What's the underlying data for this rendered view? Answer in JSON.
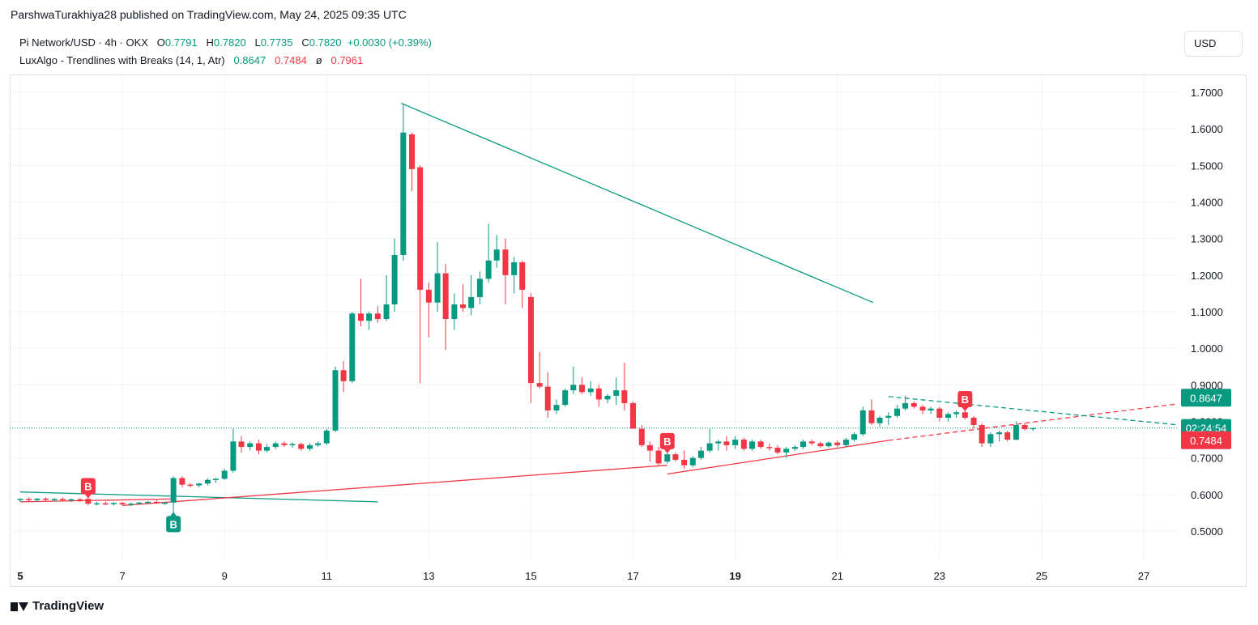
{
  "header": {
    "publisher_line": "ParshwaTurakhiya28 published on TradingView.com, May 24, 2025 09:35 UTC"
  },
  "legend": {
    "symbol_line": {
      "symbol": "Pi Network/USD · 4h · OKX",
      "o_label": "O",
      "o_value": "0.7791",
      "h_label": "H",
      "h_value": "0.7820",
      "l_label": "L",
      "l_value": "0.7735",
      "c_label": "C",
      "c_value": "0.7820",
      "change": "+0.0030 (+0.39%)"
    },
    "indicator_line": {
      "name": "LuxAlgo - Trendlines with Breaks (14, 1, Atr)",
      "v1": "0.8647",
      "v2": "0.7484",
      "sep": "ø",
      "v3": "0.7961"
    }
  },
  "currency_button": "USD",
  "footer": {
    "brand": "TradingView"
  },
  "colors": {
    "up": "#089981",
    "down": "#f23645",
    "grid": "#f0f3fa",
    "axis_text": "#131722"
  },
  "chart_data": {
    "type": "candlestick",
    "timeframe": "4h",
    "ylim": [
      0.43,
      1.79
    ],
    "xlim": [
      5,
      28.8
    ],
    "y_ticks": [
      "0.5000",
      "0.6000",
      "0.7000",
      "0.8000",
      "0.9000",
      "1.0000",
      "1.1000",
      "1.2000",
      "1.3000",
      "1.4000",
      "1.5000",
      "1.6000",
      "1.7000"
    ],
    "x_ticks": [
      {
        "v": 5,
        "label": "5"
      },
      {
        "v": 7,
        "label": "7"
      },
      {
        "v": 9,
        "label": "9"
      },
      {
        "v": 11,
        "label": "11"
      },
      {
        "v": 13,
        "label": "13"
      },
      {
        "v": 15,
        "label": "15"
      },
      {
        "v": 17,
        "label": "17"
      },
      {
        "v": 19,
        "label": "19"
      },
      {
        "v": 21,
        "label": "21"
      },
      {
        "v": 23,
        "label": "23"
      },
      {
        "v": 25,
        "label": "25"
      },
      {
        "v": 27,
        "label": "27"
      }
    ],
    "grid": true,
    "candles": [
      {
        "t": 5.0,
        "o": 0.585,
        "h": 0.59,
        "l": 0.58,
        "c": 0.588
      },
      {
        "t": 5.17,
        "o": 0.588,
        "h": 0.592,
        "l": 0.582,
        "c": 0.585
      },
      {
        "t": 5.33,
        "o": 0.585,
        "h": 0.59,
        "l": 0.58,
        "c": 0.589
      },
      {
        "t": 5.5,
        "o": 0.589,
        "h": 0.592,
        "l": 0.583,
        "c": 0.586
      },
      {
        "t": 5.67,
        "o": 0.586,
        "h": 0.59,
        "l": 0.581,
        "c": 0.588
      },
      {
        "t": 5.83,
        "o": 0.588,
        "h": 0.592,
        "l": 0.582,
        "c": 0.585
      },
      {
        "t": 6.0,
        "o": 0.585,
        "h": 0.589,
        "l": 0.58,
        "c": 0.587
      },
      {
        "t": 6.17,
        "o": 0.587,
        "h": 0.59,
        "l": 0.579,
        "c": 0.582
      },
      {
        "t": 6.33,
        "o": 0.588,
        "h": 0.592,
        "l": 0.57,
        "c": 0.575
      },
      {
        "t": 6.5,
        "o": 0.575,
        "h": 0.58,
        "l": 0.57,
        "c": 0.576
      },
      {
        "t": 6.67,
        "o": 0.576,
        "h": 0.58,
        "l": 0.571,
        "c": 0.574
      },
      {
        "t": 6.83,
        "o": 0.574,
        "h": 0.579,
        "l": 0.57,
        "c": 0.577
      },
      {
        "t": 7.0,
        "o": 0.577,
        "h": 0.58,
        "l": 0.57,
        "c": 0.573
      },
      {
        "t": 7.17,
        "o": 0.573,
        "h": 0.578,
        "l": 0.568,
        "c": 0.575
      },
      {
        "t": 7.33,
        "o": 0.575,
        "h": 0.58,
        "l": 0.572,
        "c": 0.578
      },
      {
        "t": 7.5,
        "o": 0.578,
        "h": 0.582,
        "l": 0.575,
        "c": 0.58
      },
      {
        "t": 7.67,
        "o": 0.58,
        "h": 0.585,
        "l": 0.574,
        "c": 0.577
      },
      {
        "t": 7.83,
        "o": 0.577,
        "h": 0.58,
        "l": 0.572,
        "c": 0.578
      },
      {
        "t": 8.0,
        "o": 0.578,
        "h": 0.65,
        "l": 0.55,
        "c": 0.645
      },
      {
        "t": 8.17,
        "o": 0.645,
        "h": 0.65,
        "l": 0.62,
        "c": 0.627
      },
      {
        "t": 8.33,
        "o": 0.627,
        "h": 0.632,
        "l": 0.62,
        "c": 0.625
      },
      {
        "t": 8.5,
        "o": 0.625,
        "h": 0.632,
        "l": 0.62,
        "c": 0.63
      },
      {
        "t": 8.67,
        "o": 0.63,
        "h": 0.645,
        "l": 0.625,
        "c": 0.64
      },
      {
        "t": 8.83,
        "o": 0.64,
        "h": 0.645,
        "l": 0.632,
        "c": 0.643
      },
      {
        "t": 9.0,
        "o": 0.643,
        "h": 0.67,
        "l": 0.64,
        "c": 0.665
      },
      {
        "t": 9.17,
        "o": 0.665,
        "h": 0.78,
        "l": 0.66,
        "c": 0.745
      },
      {
        "t": 9.33,
        "o": 0.745,
        "h": 0.76,
        "l": 0.715,
        "c": 0.73
      },
      {
        "t": 9.5,
        "o": 0.73,
        "h": 0.745,
        "l": 0.72,
        "c": 0.74
      },
      {
        "t": 9.67,
        "o": 0.74,
        "h": 0.75,
        "l": 0.71,
        "c": 0.72
      },
      {
        "t": 9.83,
        "o": 0.72,
        "h": 0.738,
        "l": 0.715,
        "c": 0.73
      },
      {
        "t": 10.0,
        "o": 0.73,
        "h": 0.745,
        "l": 0.725,
        "c": 0.74
      },
      {
        "t": 10.17,
        "o": 0.74,
        "h": 0.745,
        "l": 0.73,
        "c": 0.735
      },
      {
        "t": 10.33,
        "o": 0.735,
        "h": 0.742,
        "l": 0.728,
        "c": 0.738
      },
      {
        "t": 10.5,
        "o": 0.738,
        "h": 0.742,
        "l": 0.72,
        "c": 0.725
      },
      {
        "t": 10.67,
        "o": 0.725,
        "h": 0.74,
        "l": 0.72,
        "c": 0.735
      },
      {
        "t": 10.83,
        "o": 0.735,
        "h": 0.745,
        "l": 0.73,
        "c": 0.74
      },
      {
        "t": 11.0,
        "o": 0.74,
        "h": 0.78,
        "l": 0.735,
        "c": 0.775
      },
      {
        "t": 11.17,
        "o": 0.775,
        "h": 0.95,
        "l": 0.77,
        "c": 0.94
      },
      {
        "t": 11.33,
        "o": 0.94,
        "h": 0.965,
        "l": 0.88,
        "c": 0.91
      },
      {
        "t": 11.5,
        "o": 0.91,
        "h": 1.1,
        "l": 0.905,
        "c": 1.095
      },
      {
        "t": 11.67,
        "o": 1.095,
        "h": 1.19,
        "l": 1.06,
        "c": 1.075
      },
      {
        "t": 11.83,
        "o": 1.075,
        "h": 1.1,
        "l": 1.05,
        "c": 1.095
      },
      {
        "t": 12.0,
        "o": 1.095,
        "h": 1.115,
        "l": 1.07,
        "c": 1.08
      },
      {
        "t": 12.17,
        "o": 1.08,
        "h": 1.2,
        "l": 1.075,
        "c": 1.12
      },
      {
        "t": 12.33,
        "o": 1.12,
        "h": 1.3,
        "l": 1.1,
        "c": 1.255
      },
      {
        "t": 12.5,
        "o": 1.255,
        "h": 1.67,
        "l": 1.24,
        "c": 1.59
      },
      {
        "t": 12.67,
        "o": 1.585,
        "h": 1.59,
        "l": 1.43,
        "c": 1.49
      },
      {
        "t": 12.83,
        "o": 1.495,
        "h": 1.5,
        "l": 0.905,
        "c": 1.16
      },
      {
        "t": 13.0,
        "o": 1.16,
        "h": 1.18,
        "l": 1.03,
        "c": 1.125
      },
      {
        "t": 13.17,
        "o": 1.125,
        "h": 1.29,
        "l": 1.1,
        "c": 1.205
      },
      {
        "t": 13.33,
        "o": 1.205,
        "h": 1.23,
        "l": 0.995,
        "c": 1.08
      },
      {
        "t": 13.5,
        "o": 1.08,
        "h": 1.15,
        "l": 1.05,
        "c": 1.12
      },
      {
        "t": 13.67,
        "o": 1.12,
        "h": 1.175,
        "l": 1.1,
        "c": 1.11
      },
      {
        "t": 13.83,
        "o": 1.11,
        "h": 1.2,
        "l": 1.09,
        "c": 1.14
      },
      {
        "t": 14.0,
        "o": 1.14,
        "h": 1.21,
        "l": 1.12,
        "c": 1.19
      },
      {
        "t": 14.17,
        "o": 1.19,
        "h": 1.34,
        "l": 1.18,
        "c": 1.24
      },
      {
        "t": 14.33,
        "o": 1.24,
        "h": 1.31,
        "l": 1.22,
        "c": 1.27
      },
      {
        "t": 14.5,
        "o": 1.27,
        "h": 1.3,
        "l": 1.12,
        "c": 1.2
      },
      {
        "t": 14.67,
        "o": 1.2,
        "h": 1.25,
        "l": 1.15,
        "c": 1.235
      },
      {
        "t": 14.83,
        "o": 1.235,
        "h": 1.24,
        "l": 1.11,
        "c": 1.16
      },
      {
        "t": 15.0,
        "o": 1.14,
        "h": 1.15,
        "l": 0.85,
        "c": 0.905
      },
      {
        "t": 15.17,
        "o": 0.905,
        "h": 0.99,
        "l": 0.89,
        "c": 0.895
      },
      {
        "t": 15.33,
        "o": 0.895,
        "h": 0.935,
        "l": 0.81,
        "c": 0.83
      },
      {
        "t": 15.5,
        "o": 0.83,
        "h": 0.86,
        "l": 0.82,
        "c": 0.845
      },
      {
        "t": 15.67,
        "o": 0.845,
        "h": 0.89,
        "l": 0.84,
        "c": 0.885
      },
      {
        "t": 15.83,
        "o": 0.885,
        "h": 0.95,
        "l": 0.875,
        "c": 0.9
      },
      {
        "t": 16.0,
        "o": 0.9,
        "h": 0.92,
        "l": 0.875,
        "c": 0.88
      },
      {
        "t": 16.17,
        "o": 0.88,
        "h": 0.91,
        "l": 0.87,
        "c": 0.89
      },
      {
        "t": 16.33,
        "o": 0.89,
        "h": 0.9,
        "l": 0.84,
        "c": 0.86
      },
      {
        "t": 16.5,
        "o": 0.86,
        "h": 0.875,
        "l": 0.85,
        "c": 0.87
      },
      {
        "t": 16.67,
        "o": 0.87,
        "h": 0.92,
        "l": 0.845,
        "c": 0.885
      },
      {
        "t": 16.83,
        "o": 0.885,
        "h": 0.96,
        "l": 0.83,
        "c": 0.85
      },
      {
        "t": 17.0,
        "o": 0.85,
        "h": 0.855,
        "l": 0.78,
        "c": 0.78
      },
      {
        "t": 17.17,
        "o": 0.78,
        "h": 0.79,
        "l": 0.73,
        "c": 0.735
      },
      {
        "t": 17.33,
        "o": 0.735,
        "h": 0.745,
        "l": 0.69,
        "c": 0.72
      },
      {
        "t": 17.5,
        "o": 0.72,
        "h": 0.73,
        "l": 0.68,
        "c": 0.685
      },
      {
        "t": 17.67,
        "o": 0.69,
        "h": 0.715,
        "l": 0.685,
        "c": 0.71
      },
      {
        "t": 17.83,
        "o": 0.71,
        "h": 0.715,
        "l": 0.69,
        "c": 0.695
      },
      {
        "t": 18.0,
        "o": 0.695,
        "h": 0.72,
        "l": 0.67,
        "c": 0.68
      },
      {
        "t": 18.17,
        "o": 0.68,
        "h": 0.705,
        "l": 0.675,
        "c": 0.7
      },
      {
        "t": 18.33,
        "o": 0.7,
        "h": 0.73,
        "l": 0.695,
        "c": 0.72
      },
      {
        "t": 18.5,
        "o": 0.72,
        "h": 0.78,
        "l": 0.715,
        "c": 0.74
      },
      {
        "t": 18.67,
        "o": 0.74,
        "h": 0.75,
        "l": 0.72,
        "c": 0.745
      },
      {
        "t": 18.83,
        "o": 0.745,
        "h": 0.76,
        "l": 0.72,
        "c": 0.735
      },
      {
        "t": 19.0,
        "o": 0.735,
        "h": 0.76,
        "l": 0.725,
        "c": 0.75
      },
      {
        "t": 19.17,
        "o": 0.75,
        "h": 0.755,
        "l": 0.72,
        "c": 0.725
      },
      {
        "t": 19.33,
        "o": 0.725,
        "h": 0.75,
        "l": 0.72,
        "c": 0.745
      },
      {
        "t": 19.5,
        "o": 0.745,
        "h": 0.75,
        "l": 0.725,
        "c": 0.73
      },
      {
        "t": 19.67,
        "o": 0.73,
        "h": 0.74,
        "l": 0.72,
        "c": 0.728
      },
      {
        "t": 19.83,
        "o": 0.728,
        "h": 0.735,
        "l": 0.71,
        "c": 0.715
      },
      {
        "t": 20.0,
        "o": 0.715,
        "h": 0.73,
        "l": 0.7,
        "c": 0.725
      },
      {
        "t": 20.17,
        "o": 0.725,
        "h": 0.735,
        "l": 0.72,
        "c": 0.73
      },
      {
        "t": 20.33,
        "o": 0.73,
        "h": 0.75,
        "l": 0.725,
        "c": 0.745
      },
      {
        "t": 20.5,
        "o": 0.745,
        "h": 0.75,
        "l": 0.735,
        "c": 0.74
      },
      {
        "t": 20.67,
        "o": 0.74,
        "h": 0.745,
        "l": 0.728,
        "c": 0.732
      },
      {
        "t": 20.83,
        "o": 0.732,
        "h": 0.745,
        "l": 0.728,
        "c": 0.742
      },
      {
        "t": 21.0,
        "o": 0.742,
        "h": 0.748,
        "l": 0.73,
        "c": 0.735
      },
      {
        "t": 21.17,
        "o": 0.735,
        "h": 0.755,
        "l": 0.73,
        "c": 0.75
      },
      {
        "t": 21.33,
        "o": 0.75,
        "h": 0.77,
        "l": 0.745,
        "c": 0.765
      },
      {
        "t": 21.5,
        "o": 0.765,
        "h": 0.84,
        "l": 0.76,
        "c": 0.83
      },
      {
        "t": 21.67,
        "o": 0.83,
        "h": 0.86,
        "l": 0.79,
        "c": 0.795
      },
      {
        "t": 21.83,
        "o": 0.795,
        "h": 0.815,
        "l": 0.785,
        "c": 0.81
      },
      {
        "t": 22.0,
        "o": 0.81,
        "h": 0.825,
        "l": 0.79,
        "c": 0.815
      },
      {
        "t": 22.17,
        "o": 0.815,
        "h": 0.845,
        "l": 0.81,
        "c": 0.835
      },
      {
        "t": 22.33,
        "o": 0.835,
        "h": 0.87,
        "l": 0.83,
        "c": 0.85
      },
      {
        "t": 22.5,
        "o": 0.85,
        "h": 0.855,
        "l": 0.835,
        "c": 0.84
      },
      {
        "t": 22.67,
        "o": 0.84,
        "h": 0.845,
        "l": 0.82,
        "c": 0.83
      },
      {
        "t": 22.83,
        "o": 0.83,
        "h": 0.84,
        "l": 0.82,
        "c": 0.835
      },
      {
        "t": 23.0,
        "o": 0.835,
        "h": 0.84,
        "l": 0.8,
        "c": 0.81
      },
      {
        "t": 23.17,
        "o": 0.81,
        "h": 0.825,
        "l": 0.8,
        "c": 0.82
      },
      {
        "t": 23.33,
        "o": 0.82,
        "h": 0.83,
        "l": 0.81,
        "c": 0.825
      },
      {
        "t": 23.5,
        "o": 0.825,
        "h": 0.83,
        "l": 0.805,
        "c": 0.81
      },
      {
        "t": 23.67,
        "o": 0.81,
        "h": 0.815,
        "l": 0.78,
        "c": 0.79
      },
      {
        "t": 23.83,
        "o": 0.79,
        "h": 0.795,
        "l": 0.73,
        "c": 0.74
      },
      {
        "t": 24.0,
        "o": 0.74,
        "h": 0.77,
        "l": 0.73,
        "c": 0.765
      },
      {
        "t": 24.17,
        "o": 0.765,
        "h": 0.775,
        "l": 0.745,
        "c": 0.77
      },
      {
        "t": 24.33,
        "o": 0.77,
        "h": 0.775,
        "l": 0.745,
        "c": 0.75
      },
      {
        "t": 24.5,
        "o": 0.75,
        "h": 0.8,
        "l": 0.748,
        "c": 0.79
      },
      {
        "t": 24.67,
        "o": 0.79,
        "h": 0.795,
        "l": 0.775,
        "c": 0.779
      },
      {
        "t": 24.83,
        "o": 0.779,
        "h": 0.782,
        "l": 0.7735,
        "c": 0.782
      }
    ],
    "trendlines": [
      {
        "color": "#089981",
        "style": "solid",
        "from": [
          12.46,
          1.67
        ],
        "to": [
          21.7,
          1.125
        ]
      },
      {
        "color": "#089981",
        "style": "solid",
        "from": [
          5.0,
          0.607
        ],
        "to": [
          12.0,
          0.58
        ]
      },
      {
        "color": "#f23645",
        "style": "solid",
        "from": [
          5.0,
          0.58
        ],
        "to": [
          8.0,
          0.588
        ]
      },
      {
        "color": "#f23645",
        "style": "solid",
        "from": [
          7.0,
          0.57
        ],
        "to": [
          17.67,
          0.68
        ]
      },
      {
        "color": "#f23645",
        "style": "solid",
        "from": [
          17.67,
          0.656
        ],
        "to": [
          22.0,
          0.748
        ]
      },
      {
        "color": "#f23645",
        "style": "dashed",
        "from": [
          22.0,
          0.748
        ],
        "to": [
          28.8,
          0.868
        ]
      },
      {
        "color": "#089981",
        "style": "dashed",
        "from": [
          22.0,
          0.868
        ],
        "to": [
          28.8,
          0.775
        ]
      }
    ],
    "last_price_line": {
      "value": 0.782
    },
    "break_labels": [
      {
        "text": "B",
        "t": 6.33,
        "y": 0.592,
        "color": "#f23645",
        "position": "above"
      },
      {
        "text": "B",
        "t": 8.0,
        "y": 0.55,
        "color": "#089981",
        "position": "below"
      },
      {
        "text": "B",
        "t": 17.67,
        "y": 0.715,
        "color": "#f23645",
        "position": "above"
      },
      {
        "text": "B",
        "t": 23.5,
        "y": 0.83,
        "color": "#f23645",
        "position": "above"
      }
    ],
    "price_tags": [
      {
        "text": "0.8647",
        "value": 0.8647,
        "color": "#089981"
      },
      {
        "text": "02:24:54",
        "value": 0.782,
        "color": "#089981"
      },
      {
        "text": "0.7484",
        "value": 0.7484,
        "color": "#f23645"
      }
    ]
  }
}
